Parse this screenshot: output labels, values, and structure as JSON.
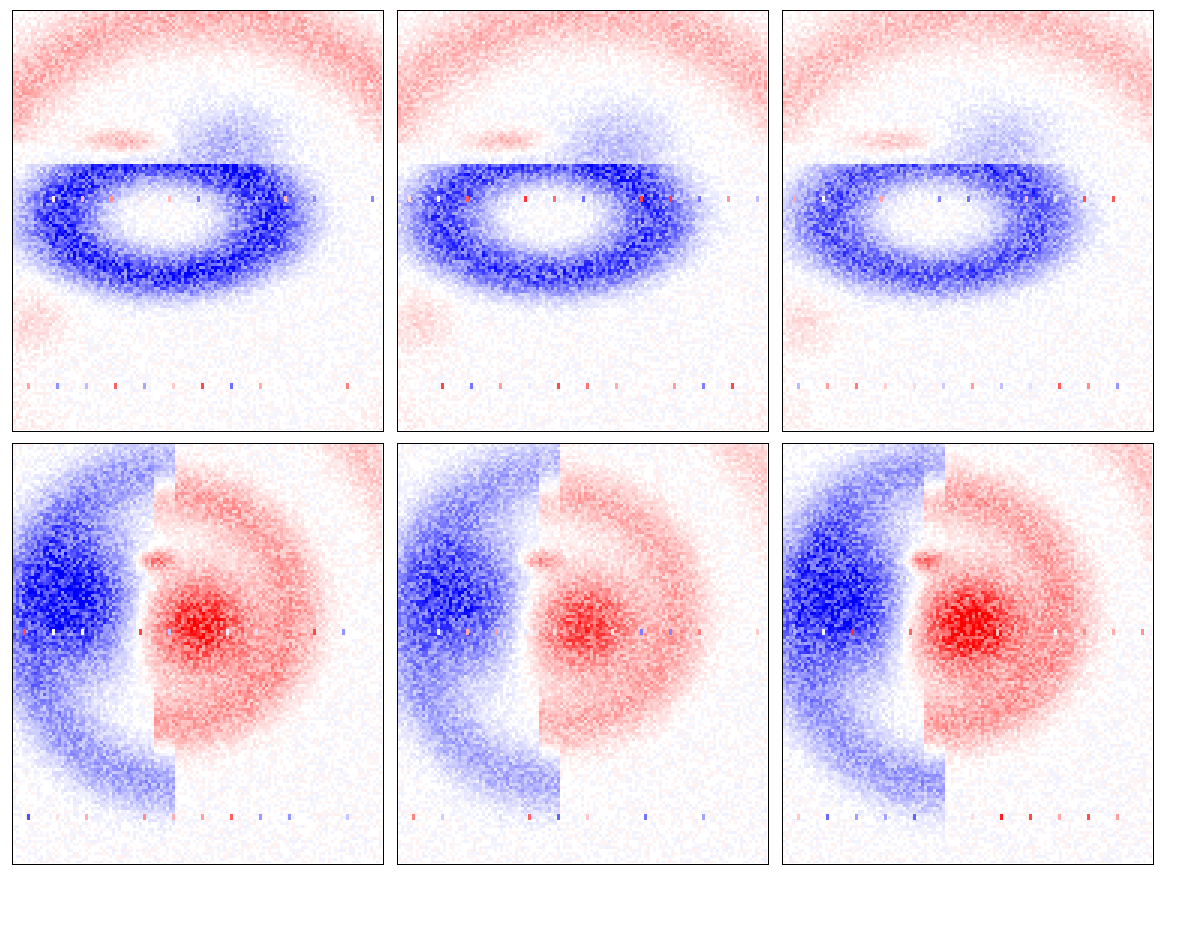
{
  "chart_data": [
    {
      "type": "heatmap",
      "title": "",
      "xlabel": "",
      "ylabel": "",
      "grid": false,
      "colormap": {
        "negative": "#0000ff",
        "zero": "#ffffff",
        "positive": "#ff0000"
      },
      "pattern": "row1",
      "intensity": 1.0
    },
    {
      "type": "heatmap",
      "title": "",
      "xlabel": "",
      "ylabel": "",
      "grid": false,
      "colormap": {
        "negative": "#0000ff",
        "zero": "#ffffff",
        "positive": "#ff0000"
      },
      "pattern": "row1",
      "intensity": 0.9
    },
    {
      "type": "heatmap",
      "title": "",
      "xlabel": "",
      "ylabel": "",
      "grid": false,
      "colormap": {
        "negative": "#0000ff",
        "zero": "#ffffff",
        "positive": "#ff0000"
      },
      "pattern": "row1",
      "intensity": 0.8
    },
    {
      "type": "heatmap",
      "title": "",
      "xlabel": "",
      "ylabel": "",
      "grid": false,
      "colormap": {
        "negative": "#0000ff",
        "zero": "#ffffff",
        "positive": "#ff0000"
      },
      "pattern": "row2",
      "intensity": 1.0
    },
    {
      "type": "heatmap",
      "title": "",
      "xlabel": "",
      "ylabel": "",
      "grid": false,
      "colormap": {
        "negative": "#0000ff",
        "zero": "#ffffff",
        "positive": "#ff0000"
      },
      "pattern": "row2",
      "intensity": 0.85
    },
    {
      "type": "heatmap",
      "title": "",
      "xlabel": "",
      "ylabel": "",
      "grid": false,
      "colormap": {
        "negative": "#0000ff",
        "zero": "#ffffff",
        "positive": "#ff0000"
      },
      "pattern": "row2b",
      "intensity": 1.0
    }
  ]
}
